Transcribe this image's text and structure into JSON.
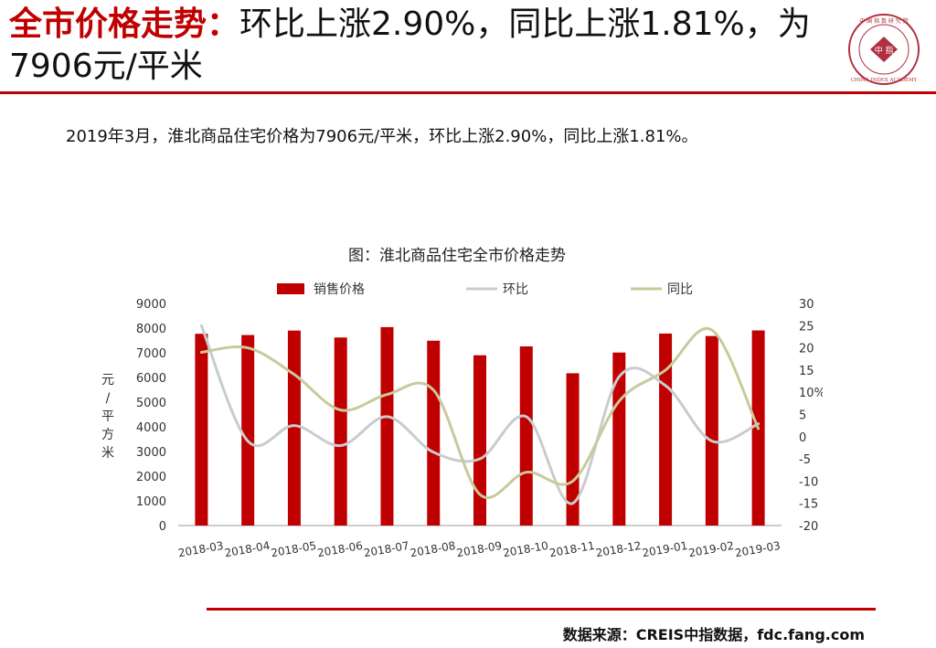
{
  "slide": {
    "title_highlight": "全市价格走势：",
    "title_rest": "环比上涨2.90%，同比上涨1.81%，为7906元/平米",
    "summary": "2019年3月，淮北商品住宅价格为7906元/平米，环比上涨2.90%，同比上涨1.81%。",
    "source": "数据来源：CREIS中指数据，fdc.fang.com",
    "logo_text_inner": "中 指",
    "logo_text_ring": "CHINA INDEX ACADEMY",
    "logo_text_top": "中 国 指 数 研 究 院"
  },
  "chart_data": {
    "type": "bar",
    "title": "图：淮北商品住宅全市价格走势",
    "categories": [
      "2018-03",
      "2018-04",
      "2018-05",
      "2018-06",
      "2018-07",
      "2018-08",
      "2018-09",
      "2018-10",
      "2018-11",
      "2018-12",
      "2019-01",
      "2019-02",
      "2019-03"
    ],
    "left_axis": {
      "label": "元/平方米",
      "min": 0,
      "max": 9000,
      "ticks": [
        0,
        1000,
        2000,
        3000,
        4000,
        5000,
        6000,
        7000,
        8000,
        9000
      ]
    },
    "right_axis": {
      "label": "%",
      "min": -20,
      "max": 30,
      "ticks": [
        -20,
        -15,
        -10,
        -5,
        0,
        5,
        10,
        15,
        20,
        25,
        30
      ]
    },
    "series": [
      {
        "name": "销售价格",
        "kind": "bar",
        "axis": "left",
        "color": "#c00000",
        "values": [
          7770,
          7720,
          7900,
          7620,
          8040,
          7490,
          6900,
          7260,
          6170,
          7010,
          7780,
          7680,
          7906
        ]
      },
      {
        "name": "环比",
        "kind": "line",
        "axis": "right",
        "color": "#c8cccf",
        "values": [
          25.0,
          -1.0,
          2.5,
          -2.0,
          4.5,
          -3.5,
          -5.0,
          4.5,
          -15.0,
          13.5,
          11.5,
          -1.0,
          2.9
        ]
      },
      {
        "name": "同比",
        "kind": "line",
        "axis": "right",
        "color": "#c9c99b",
        "values": [
          19.0,
          20.0,
          14.0,
          6.0,
          9.5,
          10.5,
          -13.0,
          -8.0,
          -10.0,
          8.0,
          15.0,
          24.0,
          1.81
        ]
      }
    ],
    "legend_position": "top",
    "grid": false
  }
}
